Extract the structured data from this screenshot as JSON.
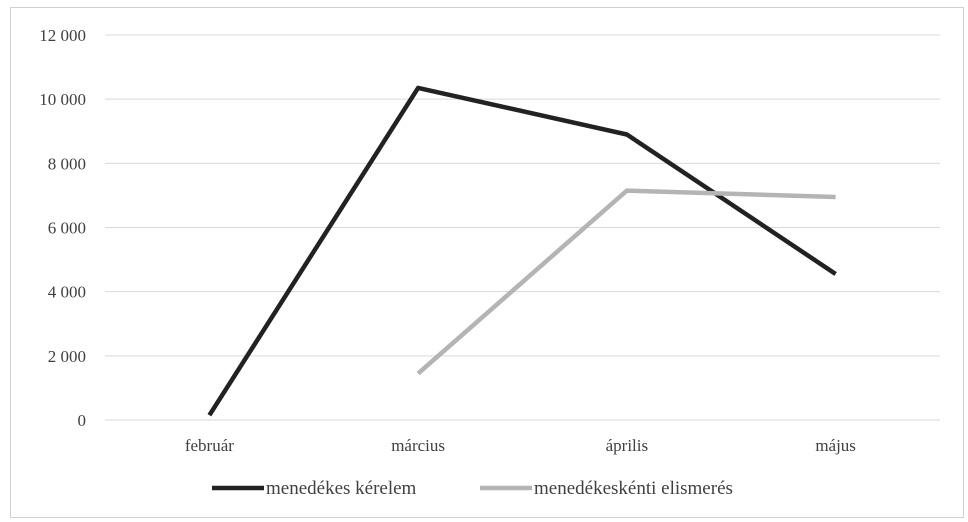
{
  "chart_data": {
    "type": "line",
    "categories": [
      "február",
      "március",
      "április",
      "május"
    ],
    "y_ticks": [
      "0",
      "2 000",
      "4 000",
      "6 000",
      "8 000",
      "10 000",
      "12 000"
    ],
    "ylim": [
      0,
      12000
    ],
    "grid": true,
    "legend_position": "bottom",
    "series": [
      {
        "name": "menedékes kérelem",
        "color": "#222222",
        "values": [
          150,
          10350,
          8900,
          4550
        ]
      },
      {
        "name": "menedékeskénti elismerés",
        "color": "#b4b4b4",
        "values": [
          null,
          1450,
          7150,
          6950
        ]
      }
    ]
  }
}
